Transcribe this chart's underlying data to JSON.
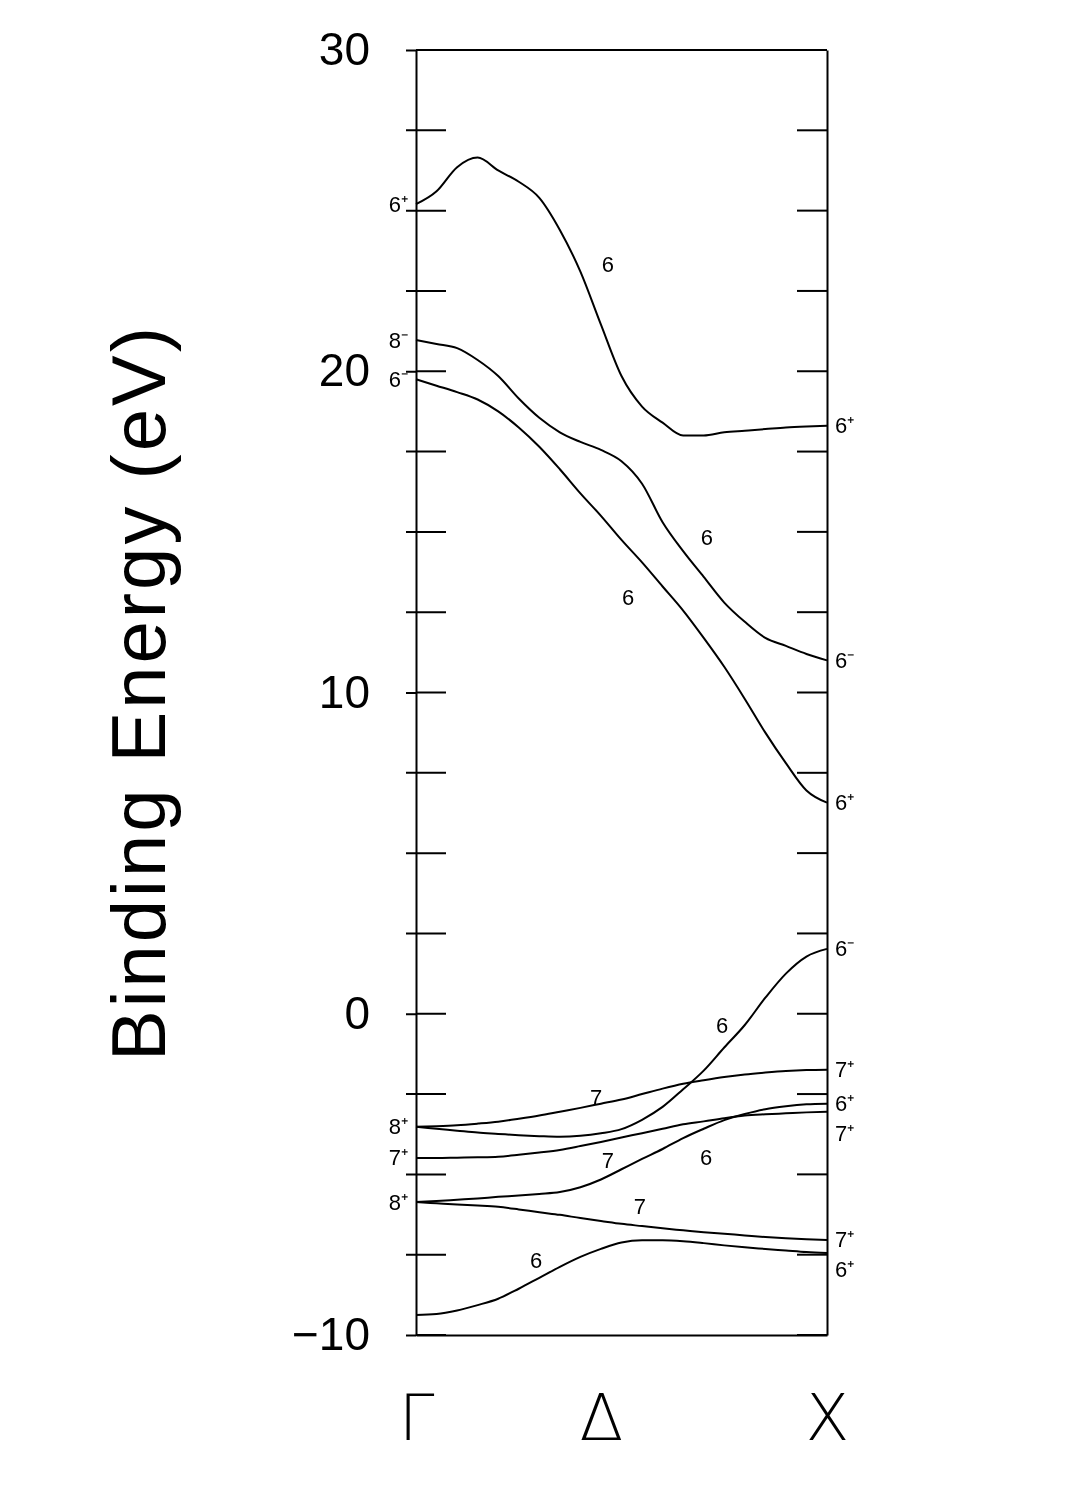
{
  "chart_data": {
    "type": "line",
    "ylabel": "Binding Energy (eV)",
    "categories": [
      "Γ",
      null,
      null,
      null,
      null,
      null,
      null,
      null,
      null,
      "Δ",
      null,
      null,
      null,
      null,
      null,
      null,
      null,
      null,
      null,
      null,
      "X"
    ],
    "ylim": [
      -10,
      30
    ],
    "yticks": [
      -10,
      0,
      10,
      20,
      30
    ],
    "line_style": "solid",
    "series": [
      {
        "color": "#000000",
        "values": [
          25.2,
          25.6,
          26.35,
          26.65,
          26.25,
          25.9,
          25.4,
          24.4,
          23.1,
          21.45,
          19.85,
          18.9,
          18.4,
          18.0,
          18.0,
          18.1,
          18.15,
          18.2,
          18.25,
          18.28,
          18.3
        ]
      },
      {
        "color": "#000000",
        "values": [
          20.97,
          20.85,
          20.72,
          20.35,
          19.85,
          19.15,
          18.55,
          18.1,
          17.8,
          17.55,
          17.2,
          16.5,
          15.3,
          14.4,
          13.6,
          12.8,
          12.2,
          11.7,
          11.45,
          11.2,
          11.0
        ]
      },
      {
        "color": "#000000",
        "values": [
          19.75,
          19.55,
          19.35,
          19.12,
          18.75,
          18.25,
          17.65,
          16.95,
          16.2,
          15.5,
          14.75,
          14.05,
          13.3,
          12.55,
          11.7,
          10.8,
          9.8,
          8.75,
          7.8,
          6.95,
          6.57
        ]
      },
      {
        "color": "#000000",
        "values": [
          -3.52,
          -3.5,
          -3.47,
          -3.42,
          -3.36,
          -3.27,
          -3.17,
          -3.05,
          -2.93,
          -2.8,
          -2.67,
          -2.5,
          -2.33,
          -2.18,
          -2.07,
          -1.97,
          -1.89,
          -1.83,
          -1.78,
          -1.75,
          -1.74
        ]
      },
      {
        "color": "#000000",
        "values": [
          -3.52,
          -3.58,
          -3.64,
          -3.7,
          -3.74,
          -3.78,
          -3.81,
          -3.83,
          -3.8,
          -3.72,
          -3.59,
          -3.3,
          -2.9,
          -2.35,
          -1.77,
          -1.05,
          -0.35,
          0.5,
          1.25,
          1.78,
          2.02
        ]
      },
      {
        "color": "#000000",
        "values": [
          -4.49,
          -4.49,
          -4.48,
          -4.47,
          -4.45,
          -4.39,
          -4.32,
          -4.24,
          -4.12,
          -3.99,
          -3.85,
          -3.72,
          -3.58,
          -3.44,
          -3.35,
          -3.25,
          -3.17,
          -3.13,
          -3.1,
          -3.07,
          -3.05
        ]
      },
      {
        "color": "#000000",
        "values": [
          -5.86,
          -5.83,
          -5.79,
          -5.75,
          -5.7,
          -5.66,
          -5.61,
          -5.55,
          -5.4,
          -5.16,
          -4.84,
          -4.52,
          -4.21,
          -3.87,
          -3.58,
          -3.31,
          -3.12,
          -2.97,
          -2.88,
          -2.82,
          -2.8
        ]
      },
      {
        "color": "#000000",
        "values": [
          -5.86,
          -5.9,
          -5.94,
          -5.97,
          -6.01,
          -6.09,
          -6.18,
          -6.26,
          -6.36,
          -6.45,
          -6.54,
          -6.61,
          -6.68,
          -6.74,
          -6.8,
          -6.85,
          -6.9,
          -6.95,
          -6.99,
          -7.02,
          -7.04
        ]
      },
      {
        "color": "#000000",
        "values": [
          -9.38,
          -9.35,
          -9.24,
          -9.07,
          -8.87,
          -8.56,
          -8.22,
          -7.88,
          -7.57,
          -7.32,
          -7.12,
          -7.05,
          -7.05,
          -7.08,
          -7.14,
          -7.21,
          -7.27,
          -7.32,
          -7.37,
          -7.42,
          -7.45
        ]
      }
    ],
    "annotations": [
      "6",
      "6",
      "6",
      "6",
      "7",
      "7",
      "6",
      "7",
      "6",
      {
        "text": "6⁺",
        "x": "Γ",
        "y": 25.2
      },
      {
        "text": "8⁻",
        "x": "Γ",
        "y": 20.97
      },
      {
        "text": "6⁻",
        "x": "Γ",
        "y": 19.75
      },
      {
        "text": "8⁺",
        "x": "Γ",
        "y": -3.52
      },
      {
        "text": "7⁺",
        "x": "Γ",
        "y": -4.49
      },
      {
        "text": "8⁺",
        "x": "Γ",
        "y": -5.86
      },
      {
        "text": "6⁺",
        "x": "X",
        "y": 18.3
      },
      {
        "text": "6⁻",
        "x": "X",
        "y": 11.0
      },
      {
        "text": "6⁺",
        "x": "X",
        "y": 6.57
      },
      {
        "text": "6⁻",
        "x": "X",
        "y": 2.02
      },
      {
        "text": "7⁺",
        "x": "X",
        "y": -1.74
      },
      {
        "text": "6⁺",
        "x": "X",
        "y": -2.8
      },
      {
        "text": "7⁺",
        "x": "X",
        "y": -3.05
      },
      {
        "text": "7⁺",
        "x": "X",
        "y": -7.04
      },
      {
        "text": "6⁺",
        "x": "X",
        "y": -7.45
      }
    ]
  }
}
